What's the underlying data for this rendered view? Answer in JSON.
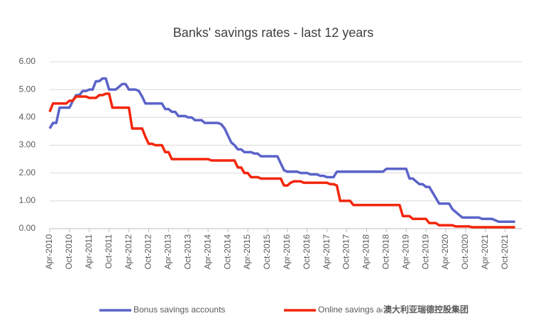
{
  "chart_data": {
    "type": "line",
    "title": "Banks' savings rates - last 12 years",
    "categories": [
      "Apr-2010",
      null,
      null,
      null,
      null,
      null,
      "Oct-2010",
      null,
      null,
      null,
      null,
      null,
      "Apr-2011",
      null,
      null,
      null,
      null,
      null,
      "Oct-2011",
      null,
      null,
      null,
      null,
      null,
      "Apr-2012",
      null,
      null,
      null,
      null,
      null,
      "Oct-2012",
      null,
      null,
      null,
      null,
      null,
      "Apr-2013",
      null,
      null,
      null,
      null,
      null,
      "Oct-2013",
      null,
      null,
      null,
      null,
      null,
      "Apr-2014",
      null,
      null,
      null,
      null,
      null,
      "Oct-2014",
      null,
      null,
      null,
      null,
      null,
      "Apr-2015",
      null,
      null,
      null,
      null,
      null,
      "Oct-2015",
      null,
      null,
      null,
      null,
      null,
      "Apr-2016",
      null,
      null,
      null,
      null,
      null,
      "Oct-2016",
      null,
      null,
      null,
      null,
      null,
      "Apr-2017",
      null,
      null,
      null,
      null,
      null,
      "Oct-2017",
      null,
      null,
      null,
      null,
      null,
      "Apr-2018",
      null,
      null,
      null,
      null,
      null,
      "Oct-2018",
      null,
      null,
      null,
      null,
      null,
      "Apr-2019",
      null,
      null,
      null,
      null,
      null,
      "Oct-2019",
      null,
      null,
      null,
      null,
      null,
      "Apr-2020",
      null,
      null,
      null,
      null,
      null,
      "Oct-2020",
      null,
      null,
      null,
      null,
      null,
      "Apr-2021",
      null,
      null,
      null,
      null,
      null,
      "Oct-2021",
      null,
      null,
      null
    ],
    "series": [
      {
        "name": "Bonus savings accounts",
        "color": "#5b63c9",
        "values": [
          3.6,
          3.8,
          3.8,
          4.35,
          4.35,
          4.35,
          4.35,
          4.6,
          4.8,
          4.8,
          4.95,
          4.95,
          5.0,
          5.0,
          5.3,
          5.3,
          5.4,
          5.4,
          5.0,
          5.0,
          5.0,
          5.1,
          5.2,
          5.2,
          5.0,
          5.0,
          5.0,
          4.95,
          4.75,
          4.5,
          4.5,
          4.5,
          4.5,
          4.5,
          4.5,
          4.3,
          4.3,
          4.2,
          4.2,
          4.05,
          4.05,
          4.05,
          4.0,
          4.0,
          3.9,
          3.9,
          3.9,
          3.8,
          3.8,
          3.8,
          3.8,
          3.8,
          3.75,
          3.6,
          3.35,
          3.1,
          3.0,
          2.85,
          2.85,
          2.75,
          2.75,
          2.75,
          2.7,
          2.7,
          2.6,
          2.6,
          2.6,
          2.6,
          2.6,
          2.6,
          2.35,
          2.1,
          2.05,
          2.05,
          2.05,
          2.05,
          2.0,
          2.0,
          2.0,
          1.95,
          1.95,
          1.95,
          1.9,
          1.9,
          1.85,
          1.85,
          1.85,
          2.05,
          2.05,
          2.05,
          2.05,
          2.05,
          2.05,
          2.05,
          2.05,
          2.05,
          2.05,
          2.05,
          2.05,
          2.05,
          2.05,
          2.05,
          2.15,
          2.15,
          2.15,
          2.15,
          2.15,
          2.15,
          2.15,
          1.8,
          1.8,
          1.7,
          1.6,
          1.6,
          1.5,
          1.5,
          1.3,
          1.1,
          0.9,
          0.9,
          0.9,
          0.9,
          0.7,
          0.6,
          0.5,
          0.4,
          0.4,
          0.4,
          0.4,
          0.4,
          0.4,
          0.35,
          0.35,
          0.35,
          0.35,
          0.3,
          0.25,
          0.25,
          0.25,
          0.25,
          0.25,
          0.25
        ]
      },
      {
        "name": "Online savings accounts",
        "color": "#f3260c",
        "values": [
          4.2,
          4.5,
          4.5,
          4.5,
          4.5,
          4.5,
          4.6,
          4.6,
          4.75,
          4.75,
          4.75,
          4.75,
          4.7,
          4.7,
          4.7,
          4.8,
          4.8,
          4.85,
          4.85,
          4.35,
          4.35,
          4.35,
          4.35,
          4.35,
          4.35,
          3.6,
          3.6,
          3.6,
          3.6,
          3.3,
          3.05,
          3.05,
          3.0,
          3.0,
          3.0,
          2.75,
          2.75,
          2.5,
          2.5,
          2.5,
          2.5,
          2.5,
          2.5,
          2.5,
          2.5,
          2.5,
          2.5,
          2.5,
          2.5,
          2.45,
          2.45,
          2.45,
          2.45,
          2.45,
          2.45,
          2.45,
          2.45,
          2.2,
          2.2,
          2.0,
          2.0,
          1.85,
          1.85,
          1.85,
          1.8,
          1.8,
          1.8,
          1.8,
          1.8,
          1.8,
          1.8,
          1.55,
          1.55,
          1.65,
          1.7,
          1.7,
          1.7,
          1.65,
          1.65,
          1.65,
          1.65,
          1.65,
          1.65,
          1.65,
          1.65,
          1.6,
          1.6,
          1.55,
          1.0,
          1.0,
          1.0,
          1.0,
          0.85,
          0.85,
          0.85,
          0.85,
          0.85,
          0.85,
          0.85,
          0.85,
          0.85,
          0.85,
          0.85,
          0.85,
          0.85,
          0.85,
          0.85,
          0.45,
          0.45,
          0.45,
          0.35,
          0.35,
          0.35,
          0.35,
          0.35,
          0.2,
          0.2,
          0.2,
          0.12,
          0.12,
          0.12,
          0.12,
          0.12,
          0.08,
          0.08,
          0.08,
          0.08,
          0.08,
          0.05,
          0.05,
          0.05,
          0.05,
          0.05,
          0.05,
          0.05,
          0.05,
          0.05,
          0.05,
          0.05,
          0.05,
          0.05,
          0.05
        ]
      }
    ],
    "ylim": [
      0,
      6
    ],
    "yticks": [
      {
        "value": 0,
        "label": "0.00"
      },
      {
        "value": 1,
        "label": "1.00"
      },
      {
        "value": 2,
        "label": "2.00"
      },
      {
        "value": 3,
        "label": "3.00"
      },
      {
        "value": 4,
        "label": "4.00"
      },
      {
        "value": 5,
        "label": "5.00"
      },
      {
        "value": 6,
        "label": "6.00"
      }
    ],
    "grid": true,
    "legend": "bottom"
  },
  "watermark": "澳大利亚瑞德控股集团"
}
